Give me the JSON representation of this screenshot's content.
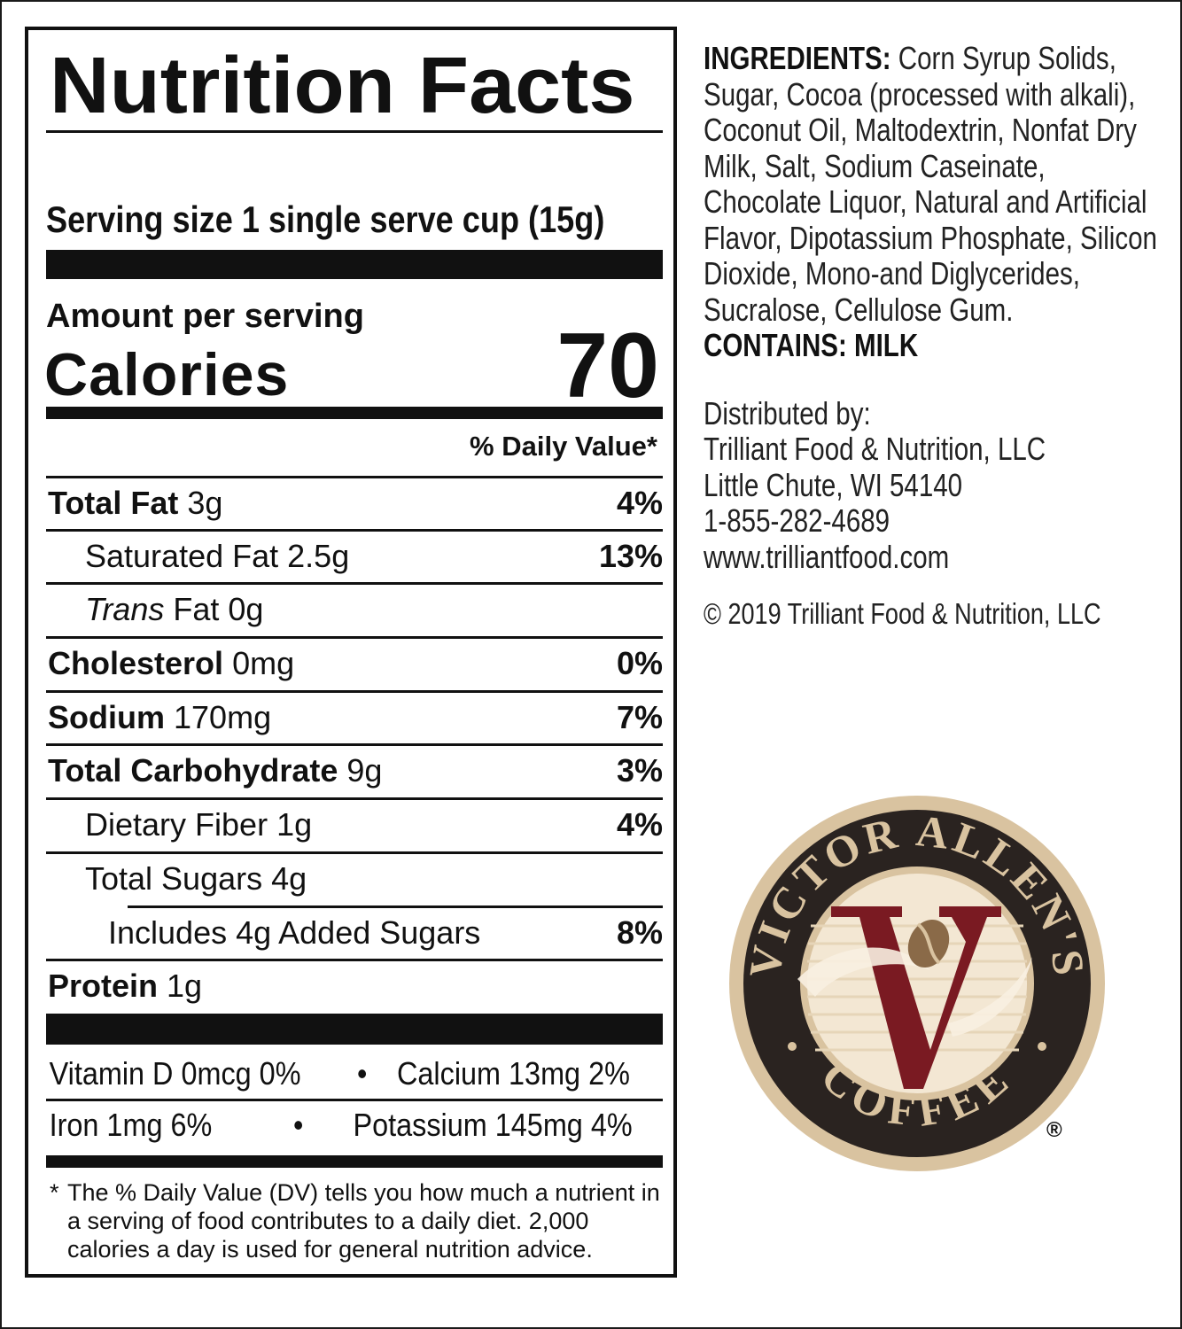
{
  "nutrition": {
    "title": "Nutrition Facts",
    "serving_size": "Serving size 1 single serve cup (15g)",
    "amount_per_serving": "Amount per serving",
    "calories_label": "Calories",
    "calories_value": "70",
    "dv_header": "% Daily Value*",
    "rows": [
      {
        "name": "Total Fat",
        "amount": "3g",
        "pct": "4%"
      },
      {
        "name": "Saturated Fat",
        "amount": "2.5g",
        "pct": "13%"
      },
      {
        "name_italic": "Trans",
        "name": "Fat",
        "amount": "0g",
        "pct": ""
      },
      {
        "name": "Cholesterol",
        "amount": "0mg",
        "pct": "0%"
      },
      {
        "name": "Sodium",
        "amount": "170mg",
        "pct": "7%"
      },
      {
        "name": "Total Carbohydrate",
        "amount": "9g",
        "pct": "3%"
      },
      {
        "name": "Dietary Fiber",
        "amount": "1g",
        "pct": "4%"
      },
      {
        "name": "Total Sugars",
        "amount": "4g",
        "pct": ""
      },
      {
        "name": "Includes 4g Added Sugars",
        "amount": "",
        "pct": "8%"
      },
      {
        "name": "Protein",
        "amount": "1g",
        "pct": ""
      }
    ],
    "vitamins": {
      "row1_left": "Vitamin D 0mcg 0%",
      "row1_right": "Calcium 13mg 2%",
      "row2_left": "Iron 1mg 6%",
      "row2_right": "Potassium 145mg 4%",
      "bullet": "•"
    },
    "footnote_star": "*",
    "footnote": "The % Daily Value (DV) tells you how much a nutrient in a serving of food contributes to a daily diet. 2,000 calories a day is used for general nutrition advice."
  },
  "ingredients": {
    "label": "INGREDIENTS:",
    "text": "Corn Syrup Solids, Sugar, Cocoa (processed with alkali), Coconut Oil, Maltodextrin, Nonfat Dry Milk, Salt, Sodium Caseinate, Chocolate Liquor, Natural and Artificial Flavor, Dipotassium Phosphate, Silicon Dioxide, Mono-and Diglycerides, Sucralose, Cellulose Gum.",
    "contains": "CONTAINS: MILK"
  },
  "distributor": {
    "label": "Distributed by:",
    "name": "Trilliant Food & Nutrition, LLC",
    "city": "Little Chute, WI 54140",
    "phone": "1-855-282-4689",
    "website": "www.trilliantfood.com",
    "copyright": "© 2019 Trilliant Food & Nutrition, LLC"
  },
  "logo": {
    "top_text": "VICTOR ALLEN'S",
    "bottom_text": "COFFEE",
    "letter": "V",
    "registered": "®",
    "colors": {
      "ring": "#2a2320",
      "tan": "#d9c3a0",
      "cream": "#f3e7d3",
      "red": "#7a1a22"
    }
  }
}
